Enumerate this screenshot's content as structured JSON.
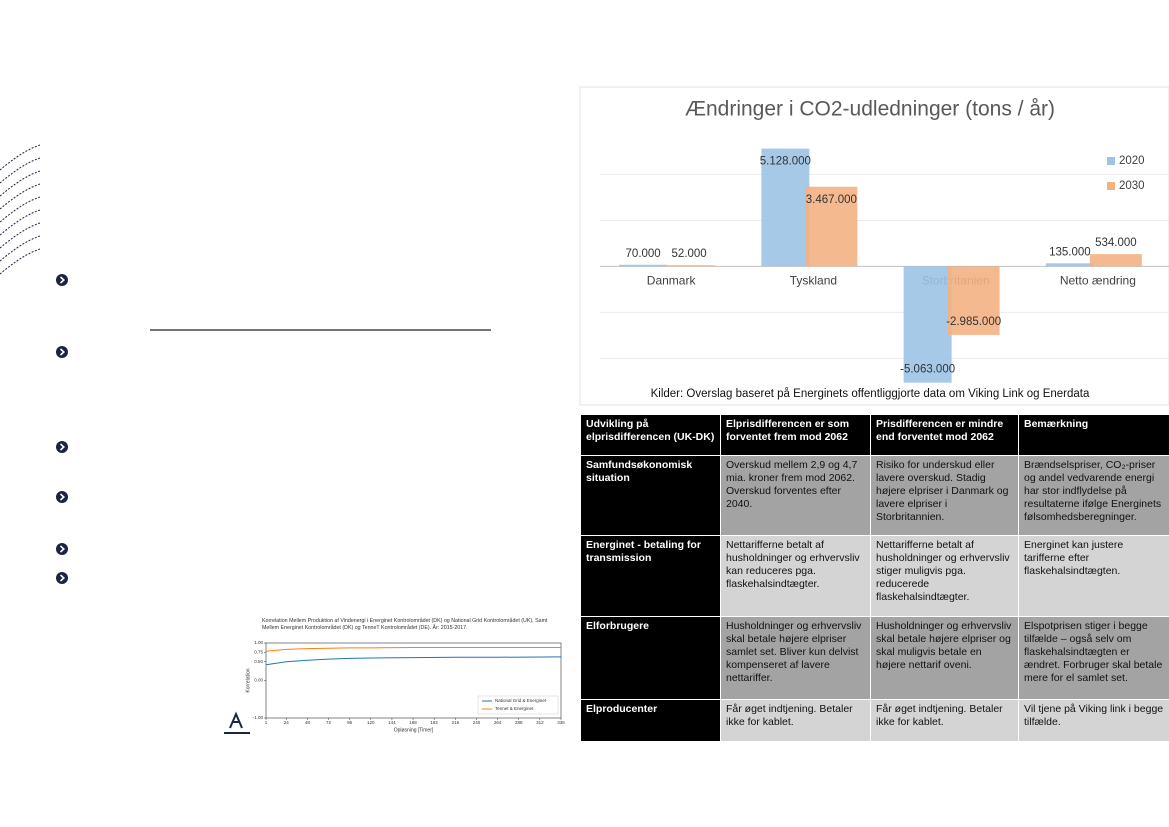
{
  "chart_data": [
    {
      "type": "bar",
      "title": "Ændringer i CO2-udledninger (tons / år)",
      "categories": [
        "Danmark",
        "Tyskland",
        "Storbritanien",
        "Netto ændring"
      ],
      "series": [
        {
          "name": "2020",
          "color": "#9dc3e6",
          "values": [
            70000,
            5128000,
            -5063000,
            135000
          ],
          "value_labels": [
            "70.000",
            "5.128.000",
            "-5.063.000",
            "135.000"
          ]
        },
        {
          "name": "2030",
          "color": "#f4b183",
          "values": [
            52000,
            3467000,
            -2985000,
            534000
          ],
          "value_labels": [
            "52.000",
            "3.467.000",
            "-2.985.000",
            "534.000"
          ]
        }
      ],
      "ylim": [
        -5600000,
        7200000
      ],
      "yticks": [
        -4000000,
        -2000000,
        0,
        2000000,
        4000000
      ],
      "grid": true,
      "legend": "top-right",
      "note": "Kilder: Overslag baseret på Energinets offentliggjorte data om Viking Link og Enerdata"
    },
    {
      "type": "line",
      "title": "Korrelation Mellem Produktion af Vindenergi i Energinet Kontrolområdet (DK) og National Grid Kontrolområdet (UK), Samt Mellem Energinet Kontrolområdet (DK) og TenneT Kontrolområdet (DE). År: 2015-2017.",
      "x_label": "Opløsning [Timer]",
      "y_label": "Korrelation",
      "x": [
        1,
        24,
        48,
        72,
        96,
        120,
        168,
        216,
        264,
        336
      ],
      "series": [
        {
          "name": "National Grid & Energinet",
          "color": "#1f77b4",
          "values": [
            0.42,
            0.5,
            0.54,
            0.57,
            0.59,
            0.6,
            0.61,
            0.62,
            0.62,
            0.63
          ]
        },
        {
          "name": "Tennet & Energinet",
          "color": "#ff7f0e",
          "values": [
            0.78,
            0.83,
            0.85,
            0.86,
            0.87,
            0.87,
            0.88,
            0.88,
            0.88,
            0.88
          ]
        }
      ],
      "xlim": [
        1,
        336
      ],
      "xticks": [
        1,
        24,
        48,
        72,
        96,
        120,
        144,
        168,
        192,
        216,
        240,
        264,
        288,
        312,
        336
      ],
      "ylim": [
        -1,
        1
      ],
      "yticks": [
        {
          "value": -1,
          "label": "-1.00"
        },
        {
          "value": 0,
          "label": "0.00"
        },
        {
          "value": 0.5,
          "label": "0.50"
        },
        {
          "value": 0.75,
          "label": "0.75"
        },
        {
          "value": 1,
          "label": "1.00"
        }
      ],
      "legend": "lower-right"
    }
  ],
  "table": {
    "header": [
      "Udvikling på elprisdifferencen (UK-DK)",
      "Elprisdifferencen er som forventet frem mod 2062",
      "Prisdifferencen er mindre end forventet mod 2062",
      "Bemærkning"
    ],
    "rows": [
      [
        "Samfundsøkonomisk situation",
        "Overskud mellem 2,9 og 4,7 mia. kroner frem mod 2062. Overskud forventes efter 2040.",
        "Risiko for underskud eller lavere overskud. Stadig højere elpriser i Danmark og lavere elpriser i Storbritannien.",
        "Brændselspriser, CO₂-priser og andel vedvarende energi har stor indflydelse på resultaterne ifølge Energinets følsomhedsberegninger."
      ],
      [
        "Energinet - betaling for transmission",
        "Nettarifferne betalt af husholdninger og erhvervsliv kan reduceres pga. flaskehalsindtægter.",
        "Nettarifferne betalt af husholdninger og erhvervsliv stiger muligvis pga. reducerede flaskehalsindtægter.",
        "Energinet kan justere tarifferne efter flaskehalsindtægten."
      ],
      [
        "Elforbrugere",
        "Husholdninger og erhvervsliv skal betale højere elpriser samlet set. Bliver kun delvist kompenseret af lavere nettariffer.",
        "Husholdninger og erhvervsliv skal betale højere elpriser og skal muligvis betale en højere nettarif oveni.",
        "Elspotprisen stiger i begge tilfælde – også selv om flaskehalsindtægten er ændret. Forbruger skal betale mere for el samlet set."
      ],
      [
        "Elproducenter",
        "Får øget indtjening. Betaler ikke for kablet.",
        "Får øget indtjening. Betaler ikke for kablet.",
        "Vil tjene på Viking link i begge tilfælde."
      ]
    ]
  }
}
